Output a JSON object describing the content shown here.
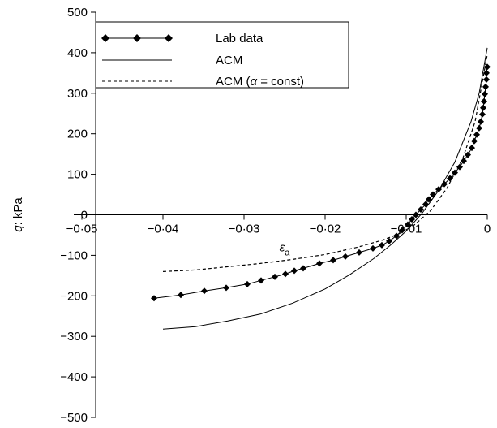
{
  "chart_data": {
    "type": "line",
    "xlabel": "ε",
    "xlabel_subscript": "a",
    "ylabel": "q: kPa",
    "xlim": [
      -0.05,
      0
    ],
    "ylim": [
      -500,
      500
    ],
    "x_ticks": [
      -0.05,
      -0.04,
      -0.03,
      -0.02,
      -0.01,
      0
    ],
    "x_tick_labels": [
      "−0·05",
      "−0·04",
      "−0·03",
      "−0·02",
      "−0·01",
      "0"
    ],
    "y_ticks": [
      500,
      400,
      300,
      200,
      100,
      0,
      -100,
      -200,
      -300,
      -400,
      -500
    ],
    "y_tick_labels": [
      "500",
      "400",
      "300",
      "200",
      "100",
      "0",
      "−100",
      "−200",
      "−300",
      "−400",
      "−500"
    ],
    "grid": false,
    "legend": {
      "placement": "top-left",
      "entries": [
        {
          "series": 0,
          "label": "Lab data",
          "style": "solid-diamond"
        },
        {
          "series": 1,
          "label": "ACM",
          "style": "solid"
        },
        {
          "series": 2,
          "label": "ACM (",
          "label_alpha": "α",
          "label_tail": " = const)",
          "style": "dashed"
        }
      ]
    },
    "series": [
      {
        "name": "Lab data",
        "color": "#000000",
        "marker": "diamond",
        "points": [
          [
            -0.0411,
            -206
          ],
          [
            -0.0378,
            -198
          ],
          [
            -0.0349,
            -188
          ],
          [
            -0.0322,
            -180
          ],
          [
            -0.0296,
            -171
          ],
          [
            -0.0279,
            -162
          ],
          [
            -0.0262,
            -153
          ],
          [
            -0.0249,
            -146
          ],
          [
            -0.0238,
            -138
          ],
          [
            -0.0227,
            -132
          ],
          [
            -0.0207,
            -120
          ],
          [
            -0.019,
            -112
          ],
          [
            -0.0175,
            -103
          ],
          [
            -0.0158,
            -93
          ],
          [
            -0.0141,
            -83
          ],
          [
            -0.013,
            -75
          ],
          [
            -0.0121,
            -65
          ],
          [
            -0.0112,
            -52
          ],
          [
            -0.0105,
            -38
          ],
          [
            -0.0098,
            -24
          ],
          [
            -0.0093,
            -11
          ],
          [
            -0.0088,
            0
          ],
          [
            -0.0082,
            13
          ],
          [
            -0.0076,
            26
          ],
          [
            -0.0072,
            38
          ],
          [
            -0.0067,
            50
          ],
          [
            -0.006,
            63
          ],
          [
            -0.0053,
            76
          ],
          [
            -0.0046,
            90
          ],
          [
            -0.004,
            104
          ],
          [
            -0.0034,
            118
          ],
          [
            -0.0029,
            133
          ],
          [
            -0.0024,
            148
          ],
          [
            -0.0019,
            165
          ],
          [
            -0.0016,
            182
          ],
          [
            -0.0013,
            198
          ],
          [
            -0.001,
            214
          ],
          [
            -0.0008,
            230
          ],
          [
            -0.0006,
            248
          ],
          [
            -0.0005,
            264
          ],
          [
            -0.0004,
            280
          ],
          [
            -0.0003,
            298
          ],
          [
            -0.0002,
            316
          ],
          [
            -0.0001,
            334
          ],
          [
            -0.0001,
            350
          ],
          [
            0.0,
            365
          ]
        ]
      },
      {
        "name": "ACM",
        "color": "#000000",
        "dash": "solid",
        "points": [
          [
            -0.04,
            -282
          ],
          [
            -0.036,
            -276
          ],
          [
            -0.032,
            -262
          ],
          [
            -0.028,
            -245
          ],
          [
            -0.024,
            -218
          ],
          [
            -0.02,
            -183
          ],
          [
            -0.017,
            -148
          ],
          [
            -0.014,
            -108
          ],
          [
            -0.012,
            -76
          ],
          [
            -0.01,
            -40
          ],
          [
            -0.008,
            5
          ],
          [
            -0.006,
            60
          ],
          [
            -0.004,
            130
          ],
          [
            -0.002,
            230
          ],
          [
            -0.001,
            300
          ],
          [
            0.0,
            412
          ]
        ]
      },
      {
        "name": "ACM (α = const)",
        "color": "#000000",
        "dash": "dashed",
        "points": [
          [
            -0.04,
            -140
          ],
          [
            -0.036,
            -136
          ],
          [
            -0.032,
            -128
          ],
          [
            -0.028,
            -120
          ],
          [
            -0.024,
            -110
          ],
          [
            -0.02,
            -98
          ],
          [
            -0.016,
            -80
          ],
          [
            -0.013,
            -63
          ],
          [
            -0.011,
            -48
          ],
          [
            -0.009,
            -25
          ],
          [
            -0.007,
            10
          ],
          [
            -0.005,
            65
          ],
          [
            -0.003,
            140
          ],
          [
            -0.0015,
            230
          ],
          [
            0.0,
            395
          ]
        ]
      }
    ]
  }
}
